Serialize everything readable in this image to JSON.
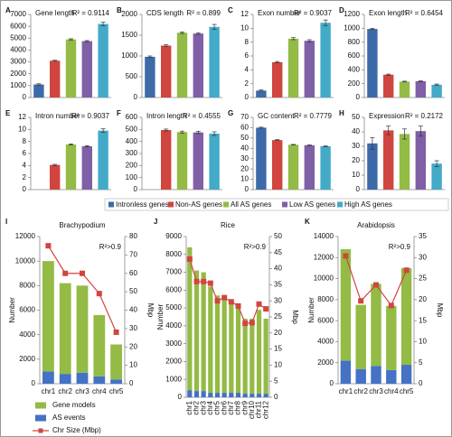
{
  "legend": {
    "names": [
      "Intronless genes",
      "Non-AS genes",
      "All AS genes",
      "Low AS genes",
      "High AS genes"
    ],
    "colors": [
      "#3d6aa8",
      "#d0453f",
      "#93bb45",
      "#7f5fa6",
      "#43aac8"
    ]
  },
  "chart_data": [
    {
      "type": "bar",
      "label": "A",
      "title": "Gene length",
      "annotation": "R² = 0.9114",
      "ylim": [
        0,
        7000
      ],
      "yticks": [
        0,
        1000,
        2000,
        3000,
        4000,
        5000,
        6000,
        7000
      ],
      "values": [
        1100,
        3100,
        4900,
        4750,
        6200
      ],
      "errors": [
        60,
        40,
        50,
        50,
        150
      ]
    },
    {
      "type": "bar",
      "label": "B",
      "title": "CDS length",
      "annotation": "R² = 0.899",
      "ylim": [
        0,
        2000
      ],
      "yticks": [
        0,
        500,
        1000,
        1500,
        2000
      ],
      "values": [
        980,
        1250,
        1560,
        1540,
        1700
      ],
      "errors": [
        20,
        20,
        20,
        20,
        60
      ]
    },
    {
      "type": "bar",
      "label": "C",
      "title": "Exon number",
      "annotation": "R² = 0.9037",
      "ylim": [
        0,
        12
      ],
      "yticks": [
        0,
        2,
        4,
        6,
        8,
        10,
        12
      ],
      "values": [
        1.0,
        5.1,
        8.5,
        8.2,
        10.8
      ],
      "errors": [
        0.1,
        0.1,
        0.15,
        0.15,
        0.4
      ]
    },
    {
      "type": "bar",
      "label": "D",
      "title": "Exon length",
      "annotation": "R² = 0.6454",
      "ylim": [
        0,
        1200
      ],
      "yticks": [
        0,
        200,
        400,
        600,
        800,
        1000,
        1200
      ],
      "values": [
        990,
        330,
        230,
        235,
        185
      ],
      "errors": [
        10,
        8,
        6,
        6,
        10
      ]
    },
    {
      "type": "bar",
      "label": "E",
      "title": "Intron number",
      "annotation": "R² = 0.9037",
      "ylim": [
        0,
        12
      ],
      "yticks": [
        0,
        2,
        4,
        6,
        8,
        10,
        12
      ],
      "values": [
        0,
        4.1,
        7.5,
        7.2,
        9.8
      ],
      "errors": [
        null,
        0.1,
        0.1,
        0.1,
        0.3
      ]
    },
    {
      "type": "bar",
      "label": "F",
      "title": "Intron length",
      "annotation": "R² = 0.4555",
      "ylim": [
        0,
        600
      ],
      "yticks": [
        0,
        100,
        200,
        300,
        400,
        500,
        600
      ],
      "values": [
        null,
        495,
        478,
        475,
        465
      ],
      "errors": [
        null,
        8,
        8,
        10,
        15
      ]
    },
    {
      "type": "bar",
      "label": "G",
      "title": "GC content",
      "annotation": "R² = 0.7779",
      "ylim": [
        0,
        70
      ],
      "yticks": [
        0,
        10,
        20,
        30,
        40,
        50,
        60,
        70
      ],
      "values": [
        60,
        48,
        43.5,
        43,
        42
      ],
      "errors": [
        0.5,
        0.4,
        0.3,
        0.3,
        0.3
      ]
    },
    {
      "type": "bar",
      "label": "H",
      "title": "Expression",
      "annotation": "R² = 0.2172",
      "ylim": [
        0,
        50
      ],
      "yticks": [
        0,
        10,
        20,
        30,
        40,
        50
      ],
      "values": [
        32,
        41,
        38.5,
        40.5,
        18
      ],
      "errors": [
        4,
        3,
        3.5,
        3.5,
        2
      ]
    },
    {
      "type": "stacked_bar_line",
      "label": "I",
      "title": "Brachypodium",
      "annotation": "R²>0.9",
      "ylabel": "Number",
      "y2label": "Mbp",
      "legend": "bottom",
      "categories": [
        "chr1",
        "chr2",
        "chr3",
        "chr4",
        "chr5"
      ],
      "series": [
        {
          "name": "AS events",
          "color": "#4472c4",
          "values": [
            1000,
            800,
            900,
            600,
            350
          ]
        },
        {
          "name": "Gene models",
          "color": "#93bb45",
          "values": [
            9000,
            7400,
            7100,
            5000,
            2850
          ]
        },
        {
          "name": "Chr Size (Mbp)",
          "color": "#d0453f",
          "axis": "y2",
          "values": [
            75,
            60,
            60,
            49,
            28
          ]
        }
      ],
      "ylim": [
        0,
        12000
      ],
      "yticks": [
        0,
        2000,
        4000,
        6000,
        8000,
        10000,
        12000
      ],
      "y2lim": [
        0,
        80
      ],
      "y2ticks": [
        0,
        10,
        20,
        30,
        40,
        50,
        60,
        70,
        80
      ]
    },
    {
      "type": "stacked_bar_line",
      "label": "J",
      "title": "Rice",
      "annotation": "R²>0.9",
      "ylabel": "Number",
      "y2label": "Mbp",
      "xtick_rotation": 90,
      "categories": [
        "chr1",
        "chr2",
        "chr3",
        "chr4",
        "chr5",
        "chr6",
        "chr7",
        "chr8",
        "chr9",
        "chr10",
        "chr11",
        "chr12"
      ],
      "series": [
        {
          "color": "#4472c4",
          "values": [
            400,
            350,
            350,
            250,
            250,
            250,
            250,
            250,
            200,
            200,
            200,
            200
          ]
        },
        {
          "color": "#93bb45",
          "values": [
            8000,
            6750,
            6650,
            5950,
            5450,
            5450,
            5150,
            4950,
            4200,
            4200,
            4700,
            4200
          ]
        },
        {
          "color": "#d0453f",
          "axis": "y2",
          "values": [
            43,
            36,
            36,
            35.5,
            30,
            31,
            29.7,
            28.4,
            23,
            23.2,
            29,
            27.5
          ]
        }
      ],
      "ylim": [
        0,
        9000
      ],
      "yticks": [
        0,
        1000,
        2000,
        3000,
        4000,
        5000,
        6000,
        7000,
        8000,
        9000
      ],
      "y2lim": [
        0,
        50
      ],
      "y2ticks": [
        0,
        5,
        10,
        15,
        20,
        25,
        30,
        35,
        40,
        45,
        50
      ]
    },
    {
      "type": "stacked_bar_line",
      "label": "K",
      "title": "Arabidopsis",
      "annotation": "R²>0.9",
      "ylabel": "Number",
      "y2label": "Mbp",
      "categories": [
        "chr1",
        "chr2",
        "chr3",
        "chr4",
        "chr5"
      ],
      "series": [
        {
          "color": "#4472c4",
          "values": [
            2200,
            1400,
            1700,
            1300,
            1800
          ]
        },
        {
          "color": "#93bb45",
          "values": [
            10600,
            6100,
            7800,
            6100,
            9200
          ]
        },
        {
          "color": "#d0453f",
          "axis": "y2",
          "values": [
            30.4,
            19.7,
            23.5,
            18.6,
            27
          ]
        }
      ],
      "ylim": [
        0,
        14000
      ],
      "yticks": [
        0,
        2000,
        4000,
        6000,
        8000,
        10000,
        12000,
        14000
      ],
      "y2lim": [
        0,
        35
      ],
      "y2ticks": [
        0,
        5,
        10,
        15,
        20,
        25,
        30,
        35
      ]
    }
  ]
}
